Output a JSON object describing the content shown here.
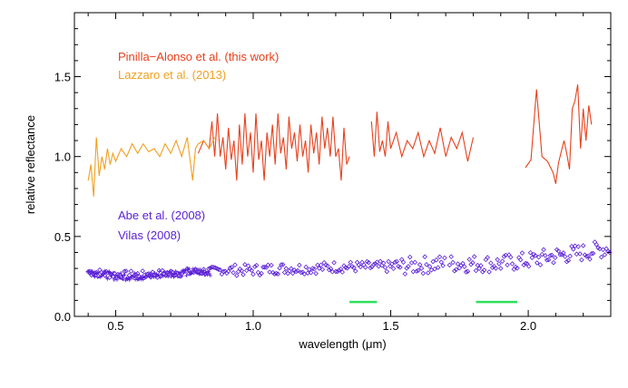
{
  "chart_data": {
    "type": "line",
    "xlabel": "wavelength (μm)",
    "ylabel": "relative reflectance",
    "xlim": [
      0.35,
      2.3
    ],
    "ylim": [
      0.0,
      1.9
    ],
    "xticks": [
      0.5,
      1.0,
      1.5,
      2.0
    ],
    "xtick_labels": [
      "0.5",
      "1.0",
      "1.5",
      "2.0"
    ],
    "yticks": [
      0.0,
      0.5,
      1.0,
      1.5
    ],
    "ytick_labels": [
      "0.0",
      "0.5",
      "1.0",
      "1.5"
    ],
    "grid": false,
    "legend_position": "top-left, inside plot",
    "series": [
      {
        "name": "Pinilla-Alonso et al. (this work)",
        "style": "line",
        "color": "#e8401c",
        "points": [
          [
            0.8,
            1.02
          ],
          [
            0.82,
            1.1
          ],
          [
            0.84,
            1.05
          ],
          [
            0.85,
            1.22
          ],
          [
            0.86,
            1.0
          ],
          [
            0.87,
            1.27
          ],
          [
            0.88,
            1.0
          ],
          [
            0.89,
            1.12
          ],
          [
            0.9,
            0.92
          ],
          [
            0.91,
            1.18
          ],
          [
            0.92,
            0.98
          ],
          [
            0.93,
            1.1
          ],
          [
            0.94,
            0.85
          ],
          [
            0.95,
            1.2
          ],
          [
            0.96,
            0.95
          ],
          [
            0.97,
            1.27
          ],
          [
            0.98,
            1.0
          ],
          [
            0.99,
            1.15
          ],
          [
            1.0,
            0.9
          ],
          [
            1.01,
            1.27
          ],
          [
            1.02,
            0.98
          ],
          [
            1.03,
            1.1
          ],
          [
            1.04,
            0.85
          ],
          [
            1.05,
            1.15
          ],
          [
            1.06,
            1.0
          ],
          [
            1.07,
            1.2
          ],
          [
            1.08,
            0.95
          ],
          [
            1.09,
            1.27
          ],
          [
            1.1,
            1.02
          ],
          [
            1.11,
            1.12
          ],
          [
            1.12,
            0.92
          ],
          [
            1.13,
            1.25
          ],
          [
            1.14,
            1.05
          ],
          [
            1.15,
            1.15
          ],
          [
            1.16,
            0.97
          ],
          [
            1.17,
            1.2
          ],
          [
            1.18,
            1.0
          ],
          [
            1.19,
            1.1
          ],
          [
            1.2,
            0.9
          ],
          [
            1.21,
            1.2
          ],
          [
            1.22,
            1.02
          ],
          [
            1.23,
            1.15
          ],
          [
            1.24,
            0.95
          ],
          [
            1.25,
            1.25
          ],
          [
            1.26,
            1.05
          ],
          [
            1.27,
            1.18
          ],
          [
            1.28,
            1.0
          ],
          [
            1.29,
            1.25
          ],
          [
            1.3,
            1.0
          ],
          [
            1.31,
            1.05
          ],
          [
            1.32,
            0.85
          ],
          [
            1.33,
            1.18
          ],
          [
            1.34,
            0.95
          ],
          [
            1.35,
            1.0
          ],
          null,
          [
            1.43,
            1.22
          ],
          [
            1.44,
            1.0
          ],
          [
            1.45,
            1.28
          ],
          [
            1.46,
            1.03
          ],
          [
            1.47,
            1.1
          ],
          [
            1.48,
            1.0
          ],
          [
            1.49,
            1.22
          ],
          [
            1.5,
            1.05
          ],
          [
            1.52,
            1.15
          ],
          [
            1.54,
            1.0
          ],
          [
            1.56,
            1.1
          ],
          [
            1.58,
            1.05
          ],
          [
            1.6,
            1.15
          ],
          [
            1.62,
            1.0
          ],
          [
            1.64,
            1.1
          ],
          [
            1.66,
            1.02
          ],
          [
            1.68,
            1.18
          ],
          [
            1.7,
            1.0
          ],
          [
            1.72,
            1.12
          ],
          [
            1.74,
            1.05
          ],
          [
            1.76,
            1.15
          ],
          [
            1.78,
            0.97
          ],
          [
            1.8,
            1.12
          ],
          null,
          [
            1.99,
            0.93
          ],
          [
            2.01,
            0.98
          ],
          [
            2.03,
            1.42
          ],
          [
            2.05,
            1.0
          ],
          [
            2.07,
            0.97
          ],
          [
            2.09,
            0.9
          ],
          [
            2.1,
            0.83
          ],
          [
            2.11,
            0.96
          ],
          [
            2.13,
            1.1
          ],
          [
            2.14,
            1.02
          ],
          [
            2.15,
            0.92
          ],
          [
            2.16,
            1.3
          ],
          [
            2.17,
            1.35
          ],
          [
            2.18,
            1.45
          ],
          [
            2.19,
            1.05
          ],
          [
            2.2,
            1.3
          ],
          [
            2.21,
            1.1
          ],
          [
            2.22,
            1.32
          ],
          [
            2.23,
            1.2
          ]
        ]
      },
      {
        "name": "Lazzaro et al. (2013)",
        "style": "line",
        "color": "#f0a020",
        "points": [
          [
            0.4,
            0.85
          ],
          [
            0.41,
            0.95
          ],
          [
            0.42,
            0.75
          ],
          [
            0.43,
            1.12
          ],
          [
            0.44,
            0.88
          ],
          [
            0.45,
            1.0
          ],
          [
            0.46,
            0.92
          ],
          [
            0.47,
            1.05
          ],
          [
            0.48,
            0.95
          ],
          [
            0.49,
            1.02
          ],
          [
            0.5,
            0.97
          ],
          [
            0.52,
            1.05
          ],
          [
            0.54,
            1.0
          ],
          [
            0.56,
            1.08
          ],
          [
            0.58,
            1.02
          ],
          [
            0.6,
            1.08
          ],
          [
            0.62,
            1.03
          ],
          [
            0.64,
            1.05
          ],
          [
            0.66,
            1.0
          ],
          [
            0.68,
            1.08
          ],
          [
            0.7,
            1.02
          ],
          [
            0.72,
            1.1
          ],
          [
            0.74,
            1.0
          ],
          [
            0.76,
            1.12
          ],
          [
            0.78,
            0.85
          ],
          [
            0.79,
            1.05
          ],
          [
            0.8,
            1.08
          ],
          [
            0.82,
            1.1
          ],
          [
            0.84,
            1.05
          ],
          [
            0.86,
            1.12
          ]
        ]
      },
      {
        "name": "Abe et al. (2008)",
        "style": "markers",
        "color": "#5a1fd6",
        "trend": [
          [
            0.4,
            0.28
          ],
          [
            0.5,
            0.26
          ],
          [
            0.6,
            0.26
          ],
          [
            0.7,
            0.27
          ],
          [
            0.8,
            0.28
          ],
          [
            0.9,
            0.29
          ],
          [
            1.0,
            0.29
          ],
          [
            1.1,
            0.3
          ],
          [
            1.2,
            0.3
          ],
          [
            1.3,
            0.31
          ],
          [
            1.4,
            0.31
          ],
          [
            1.5,
            0.31
          ],
          [
            1.6,
            0.32
          ],
          [
            1.7,
            0.33
          ],
          [
            1.8,
            0.33
          ],
          [
            1.9,
            0.33
          ],
          [
            2.0,
            0.35
          ],
          [
            2.1,
            0.38
          ],
          [
            2.2,
            0.4
          ],
          [
            2.3,
            0.43
          ]
        ]
      },
      {
        "name": "Vilas (2008)",
        "style": "markers",
        "color": "#5a1fd6",
        "trend": [
          [
            0.4,
            0.28
          ],
          [
            0.5,
            0.25
          ],
          [
            0.6,
            0.25
          ],
          [
            0.7,
            0.27
          ],
          [
            0.8,
            0.28
          ],
          [
            0.85,
            0.28
          ]
        ]
      },
      {
        "name": "",
        "style": "segments",
        "color": "#2ee05a",
        "segments": [
          [
            1.35,
            1.45,
            0.09
          ],
          [
            1.81,
            1.96,
            0.09
          ]
        ]
      }
    ]
  },
  "legend": {
    "entries": [
      {
        "label": "Pinilla−Alonso et al. (this work)",
        "color": "#e8401c"
      },
      {
        "label": "Lazzaro et al. (2013)",
        "color": "#f0a020"
      },
      {
        "label": "Abe et al. (2008)",
        "color": "#5a1fd6"
      },
      {
        "label": "Vilas (2008)",
        "color": "#5a1fd6"
      }
    ]
  }
}
